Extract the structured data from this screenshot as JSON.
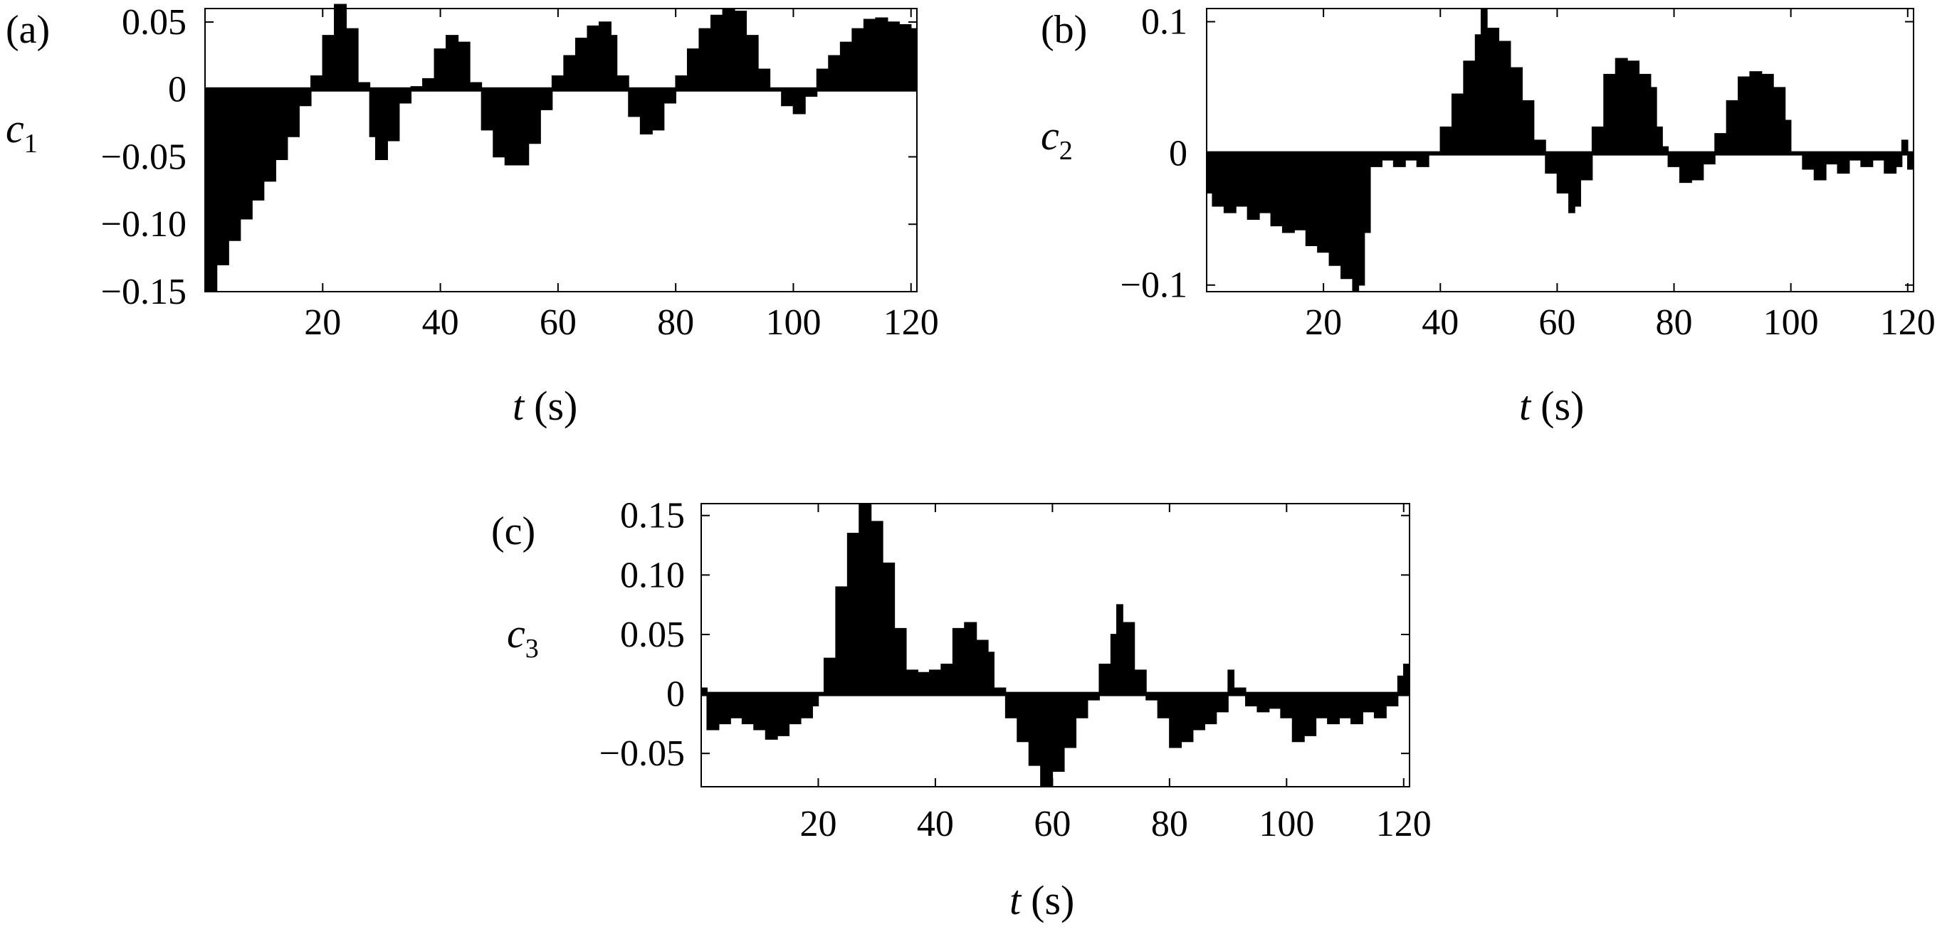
{
  "chart_data": [
    {
      "panel": "a",
      "panel_label": "(a)",
      "type": "area",
      "ylabel_main": "c",
      "ylabel_sub": "1",
      "xlabel_var": "t",
      "xlabel_unit": "(s)",
      "xlim": [
        0,
        121
      ],
      "ylim": [
        -0.15,
        0.06
      ],
      "xticks": [
        20,
        40,
        60,
        80,
        100,
        120
      ],
      "xtick_labels": [
        "20",
        "40",
        "60",
        "80",
        "100",
        "120"
      ],
      "yticks": [
        0.05,
        0,
        -0.05,
        -0.1,
        -0.15
      ],
      "ytick_labels": [
        "0.05",
        "0",
        "−0.05",
        "−0.10",
        "−0.15"
      ],
      "grid": false,
      "color": "#000000",
      "points": [
        [
          0,
          -0.15
        ],
        [
          2,
          -0.13
        ],
        [
          4,
          -0.112
        ],
        [
          6,
          -0.096
        ],
        [
          8,
          -0.082
        ],
        [
          10,
          -0.068
        ],
        [
          12,
          -0.052
        ],
        [
          14,
          -0.035
        ],
        [
          16,
          -0.012
        ],
        [
          18,
          0.01
        ],
        [
          20,
          0.04
        ],
        [
          22,
          0.063
        ],
        [
          24,
          0.045
        ],
        [
          26,
          0.005
        ],
        [
          28,
          -0.035
        ],
        [
          29,
          -0.052
        ],
        [
          31,
          -0.038
        ],
        [
          33,
          -0.01
        ],
        [
          35,
          0.002
        ],
        [
          37,
          0.008
        ],
        [
          39,
          0.03
        ],
        [
          41,
          0.04
        ],
        [
          43,
          0.035
        ],
        [
          45,
          0.005
        ],
        [
          47,
          -0.03
        ],
        [
          49,
          -0.05
        ],
        [
          51,
          -0.056
        ],
        [
          53,
          -0.056
        ],
        [
          55,
          -0.04
        ],
        [
          57,
          -0.015
        ],
        [
          59,
          0.01
        ],
        [
          61,
          0.025
        ],
        [
          63,
          0.038
        ],
        [
          65,
          0.047
        ],
        [
          67,
          0.05
        ],
        [
          69,
          0.04
        ],
        [
          70,
          0.01
        ],
        [
          72,
          -0.02
        ],
        [
          74,
          -0.033
        ],
        [
          76,
          -0.03
        ],
        [
          78,
          -0.01
        ],
        [
          80,
          0.01
        ],
        [
          82,
          0.03
        ],
        [
          84,
          0.045
        ],
        [
          86,
          0.055
        ],
        [
          88,
          0.06
        ],
        [
          90,
          0.058
        ],
        [
          92,
          0.04
        ],
        [
          94,
          0.015
        ],
        [
          96,
          0.0
        ],
        [
          98,
          -0.012
        ],
        [
          100,
          -0.018
        ],
        [
          102,
          -0.005
        ],
        [
          104,
          0.015
        ],
        [
          106,
          0.025
        ],
        [
          108,
          0.035
        ],
        [
          110,
          0.045
        ],
        [
          112,
          0.052
        ],
        [
          114,
          0.053
        ],
        [
          116,
          0.05
        ],
        [
          118,
          0.048
        ],
        [
          120,
          0.045
        ],
        [
          121,
          0.005
        ]
      ]
    },
    {
      "panel": "b",
      "panel_label": "(b)",
      "type": "area",
      "ylabel_main": "c",
      "ylabel_sub": "2",
      "xlabel_var": "t",
      "xlabel_unit": "(s)",
      "xlim": [
        0,
        121
      ],
      "ylim": [
        -0.105,
        0.11
      ],
      "xticks": [
        20,
        40,
        60,
        80,
        100,
        120
      ],
      "xtick_labels": [
        "20",
        "40",
        "60",
        "80",
        "100",
        "120"
      ],
      "yticks": [
        0.1,
        0,
        -0.1
      ],
      "ytick_labels": [
        "0.1",
        "0",
        "−0.1"
      ],
      "grid": false,
      "color": "#000000",
      "points": [
        [
          0,
          -0.03
        ],
        [
          1,
          -0.04
        ],
        [
          3,
          -0.045
        ],
        [
          5,
          -0.04
        ],
        [
          7,
          -0.05
        ],
        [
          9,
          -0.045
        ],
        [
          11,
          -0.055
        ],
        [
          13,
          -0.06
        ],
        [
          15,
          -0.058
        ],
        [
          17,
          -0.07
        ],
        [
          19,
          -0.075
        ],
        [
          21,
          -0.085
        ],
        [
          23,
          -0.095
        ],
        [
          25,
          -0.105
        ],
        [
          26,
          -0.1
        ],
        [
          27,
          -0.06
        ],
        [
          28,
          -0.01
        ],
        [
          30,
          -0.005
        ],
        [
          32,
          -0.01
        ],
        [
          34,
          -0.005
        ],
        [
          36,
          -0.01
        ],
        [
          38,
          0.0
        ],
        [
          40,
          0.02
        ],
        [
          42,
          0.045
        ],
        [
          44,
          0.07
        ],
        [
          46,
          0.09
        ],
        [
          47,
          0.11
        ],
        [
          48,
          0.095
        ],
        [
          50,
          0.085
        ],
        [
          52,
          0.065
        ],
        [
          54,
          0.04
        ],
        [
          56,
          0.01
        ],
        [
          58,
          -0.015
        ],
        [
          60,
          -0.03
        ],
        [
          62,
          -0.045
        ],
        [
          63,
          -0.04
        ],
        [
          64,
          -0.02
        ],
        [
          66,
          0.02
        ],
        [
          68,
          0.06
        ],
        [
          70,
          0.072
        ],
        [
          72,
          0.07
        ],
        [
          74,
          0.06
        ],
        [
          76,
          0.05
        ],
        [
          77,
          0.02
        ],
        [
          78,
          0.005
        ],
        [
          79,
          -0.01
        ],
        [
          81,
          -0.022
        ],
        [
          83,
          -0.02
        ],
        [
          85,
          -0.008
        ],
        [
          87,
          0.015
        ],
        [
          89,
          0.04
        ],
        [
          91,
          0.058
        ],
        [
          93,
          0.062
        ],
        [
          95,
          0.06
        ],
        [
          97,
          0.05
        ],
        [
          99,
          0.025
        ],
        [
          100,
          0.0
        ],
        [
          102,
          -0.012
        ],
        [
          104,
          -0.02
        ],
        [
          106,
          -0.008
        ],
        [
          108,
          -0.015
        ],
        [
          110,
          -0.005
        ],
        [
          112,
          -0.01
        ],
        [
          114,
          -0.005
        ],
        [
          116,
          -0.015
        ],
        [
          118,
          -0.01
        ],
        [
          119,
          0.01
        ],
        [
          120,
          -0.012
        ],
        [
          121,
          -0.005
        ]
      ]
    },
    {
      "panel": "c",
      "panel_label": "(c)",
      "type": "area",
      "ylabel_main": "c",
      "ylabel_sub": "3",
      "xlabel_var": "t",
      "xlabel_unit": "(s)",
      "xlim": [
        0,
        121
      ],
      "ylim": [
        -0.078,
        0.16
      ],
      "xticks": [
        20,
        40,
        60,
        80,
        100,
        120
      ],
      "xtick_labels": [
        "20",
        "40",
        "60",
        "80",
        "100",
        "120"
      ],
      "yticks": [
        0.15,
        0.1,
        0.05,
        0,
        -0.05
      ],
      "ytick_labels": [
        "0.15",
        "0.10",
        "0.05",
        "0",
        "−0.05"
      ],
      "grid": false,
      "color": "#000000",
      "points": [
        [
          0,
          0.005
        ],
        [
          1,
          -0.03
        ],
        [
          3,
          -0.025
        ],
        [
          5,
          -0.02
        ],
        [
          7,
          -0.025
        ],
        [
          9,
          -0.03
        ],
        [
          11,
          -0.038
        ],
        [
          13,
          -0.035
        ],
        [
          15,
          -0.025
        ],
        [
          17,
          -0.02
        ],
        [
          19,
          -0.01
        ],
        [
          20,
          0.0
        ],
        [
          21,
          0.03
        ],
        [
          23,
          0.09
        ],
        [
          25,
          0.135
        ],
        [
          27,
          0.16
        ],
        [
          29,
          0.145
        ],
        [
          31,
          0.11
        ],
        [
          33,
          0.055
        ],
        [
          35,
          0.02
        ],
        [
          37,
          0.018
        ],
        [
          39,
          0.02
        ],
        [
          41,
          0.025
        ],
        [
          43,
          0.055
        ],
        [
          45,
          0.06
        ],
        [
          47,
          0.045
        ],
        [
          49,
          0.035
        ],
        [
          50,
          0.005
        ],
        [
          52,
          -0.02
        ],
        [
          54,
          -0.04
        ],
        [
          56,
          -0.06
        ],
        [
          58,
          -0.078
        ],
        [
          60,
          -0.065
        ],
        [
          62,
          -0.045
        ],
        [
          64,
          -0.02
        ],
        [
          66,
          -0.005
        ],
        [
          68,
          0.025
        ],
        [
          70,
          0.05
        ],
        [
          71,
          0.075
        ],
        [
          72,
          0.06
        ],
        [
          74,
          0.02
        ],
        [
          76,
          -0.005
        ],
        [
          78,
          -0.02
        ],
        [
          80,
          -0.045
        ],
        [
          82,
          -0.04
        ],
        [
          84,
          -0.03
        ],
        [
          86,
          -0.025
        ],
        [
          88,
          -0.015
        ],
        [
          90,
          0.02
        ],
        [
          91,
          0.005
        ],
        [
          93,
          -0.01
        ],
        [
          95,
          -0.015
        ],
        [
          97,
          -0.012
        ],
        [
          99,
          -0.02
        ],
        [
          101,
          -0.04
        ],
        [
          103,
          -0.035
        ],
        [
          105,
          -0.02
        ],
        [
          107,
          -0.025
        ],
        [
          109,
          -0.02
        ],
        [
          111,
          -0.025
        ],
        [
          113,
          -0.015
        ],
        [
          115,
          -0.02
        ],
        [
          117,
          -0.01
        ],
        [
          119,
          0.015
        ],
        [
          120,
          0.025
        ],
        [
          121,
          0.03
        ]
      ]
    }
  ]
}
